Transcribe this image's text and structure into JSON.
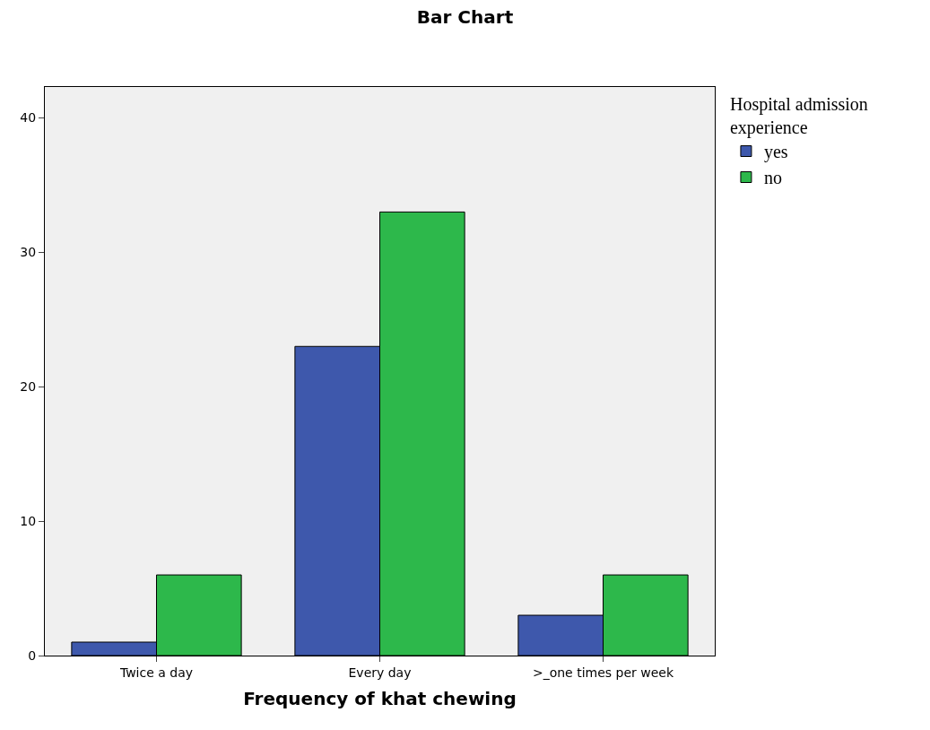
{
  "chart_data": {
    "type": "bar",
    "title": "Bar Chart",
    "xlabel": "Frequency of khat chewing",
    "legend_title": "Hospital admission\nexperience",
    "categories": [
      "Twice a day",
      "Every day",
      ">_one times per week"
    ],
    "series": [
      {
        "name": "yes",
        "color": "#3e58ac",
        "values": [
          1,
          23,
          3
        ]
      },
      {
        "name": "no",
        "color": "#2db84b",
        "values": [
          6,
          33,
          6
        ]
      }
    ],
    "ylim": [
      0,
      42.3
    ],
    "yticks": [
      0,
      10,
      20,
      30,
      40
    ],
    "grid": false,
    "legend": "top right"
  }
}
